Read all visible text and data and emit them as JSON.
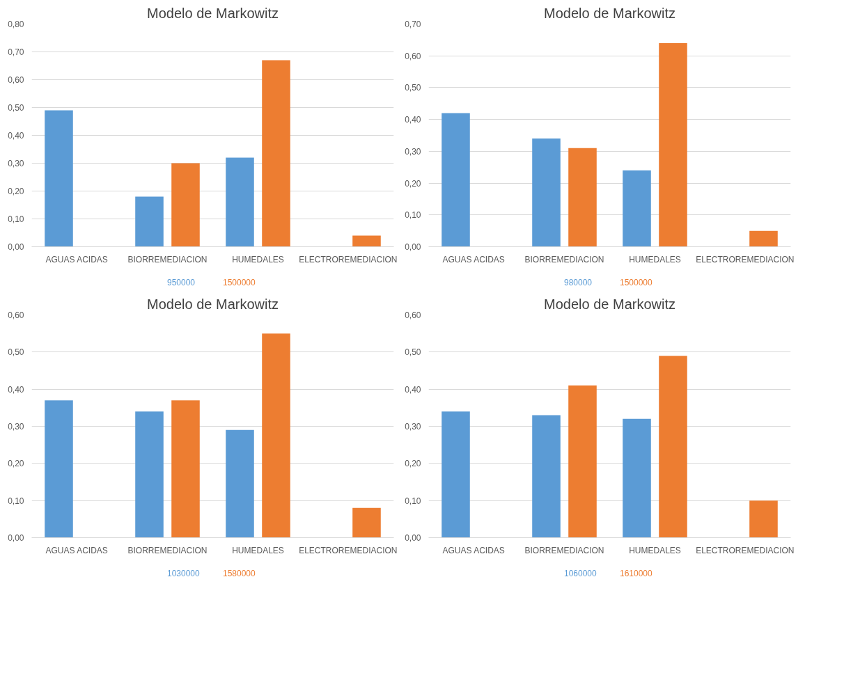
{
  "chart_data": [
    {
      "type": "bar",
      "title": "Modelo de Markowitz",
      "categories": [
        "AGUAS ACIDAS",
        "BIORREMEDIACION",
        "HUMEDALES",
        "ELECTROREMEDIACION"
      ],
      "series": [
        {
          "name": "950000",
          "color": "#5b9bd5",
          "values": [
            0.49,
            0.18,
            0.32,
            null
          ]
        },
        {
          "name": "1500000",
          "color": "#ed7d31",
          "values": [
            null,
            0.3,
            0.67,
            0.04
          ]
        }
      ],
      "ylim": [
        0,
        0.8
      ],
      "yticks": [
        {
          "value": 0,
          "label": "0,00"
        },
        {
          "value": 0.1,
          "label": "0,10"
        },
        {
          "value": 0.2,
          "label": "0,20"
        },
        {
          "value": 0.3,
          "label": "0,30"
        },
        {
          "value": 0.4,
          "label": "0,40"
        },
        {
          "value": 0.5,
          "label": "0,50"
        },
        {
          "value": 0.6,
          "label": "0,60"
        },
        {
          "value": 0.7,
          "label": "0,70"
        },
        {
          "value": 0.8,
          "label": "0,80"
        }
      ],
      "grid": "y",
      "legend": "bottom"
    },
    {
      "type": "bar",
      "title": "Modelo de Markowitz",
      "categories": [
        "AGUAS ACIDAS",
        "BIORREMEDIACION",
        "HUMEDALES",
        "ELECTROREMEDIACION"
      ],
      "series": [
        {
          "name": "980000",
          "color": "#5b9bd5",
          "values": [
            0.42,
            0.34,
            0.24,
            null
          ]
        },
        {
          "name": "1500000",
          "color": "#ed7d31",
          "values": [
            null,
            0.31,
            0.64,
            0.05
          ]
        }
      ],
      "ylim": [
        0,
        0.7
      ],
      "yticks": [
        {
          "value": 0,
          "label": "0,00"
        },
        {
          "value": 0.1,
          "label": "0,10"
        },
        {
          "value": 0.2,
          "label": "0,20"
        },
        {
          "value": 0.3,
          "label": "0,30"
        },
        {
          "value": 0.4,
          "label": "0,40"
        },
        {
          "value": 0.5,
          "label": "0,50"
        },
        {
          "value": 0.6,
          "label": "0,60"
        },
        {
          "value": 0.7,
          "label": "0,70"
        }
      ],
      "grid": "y",
      "legend": "bottom"
    },
    {
      "type": "bar",
      "title": "Modelo de Markowitz",
      "categories": [
        "AGUAS ACIDAS",
        "BIORREMEDIACION",
        "HUMEDALES",
        "ELECTROREMEDIACION"
      ],
      "series": [
        {
          "name": "1030000",
          "color": "#5b9bd5",
          "values": [
            0.37,
            0.34,
            0.29,
            null
          ]
        },
        {
          "name": "1580000",
          "color": "#ed7d31",
          "values": [
            null,
            0.37,
            0.55,
            0.08
          ]
        }
      ],
      "ylim": [
        0,
        0.6
      ],
      "yticks": [
        {
          "value": 0,
          "label": "0,00"
        },
        {
          "value": 0.1,
          "label": "0,10"
        },
        {
          "value": 0.2,
          "label": "0,20"
        },
        {
          "value": 0.3,
          "label": "0,30"
        },
        {
          "value": 0.4,
          "label": "0,40"
        },
        {
          "value": 0.5,
          "label": "0,50"
        },
        {
          "value": 0.6,
          "label": "0,60"
        }
      ],
      "grid": "y",
      "legend": "bottom"
    },
    {
      "type": "bar",
      "title": "Modelo de Markowitz",
      "categories": [
        "AGUAS ACIDAS",
        "BIORREMEDIACION",
        "HUMEDALES",
        "ELECTROREMEDIACION"
      ],
      "series": [
        {
          "name": "1060000",
          "color": "#5b9bd5",
          "values": [
            0.34,
            0.33,
            0.32,
            null
          ]
        },
        {
          "name": "1610000",
          "color": "#ed7d31",
          "values": [
            null,
            0.41,
            0.49,
            0.1
          ]
        }
      ],
      "ylim": [
        0,
        0.6
      ],
      "yticks": [
        {
          "value": 0,
          "label": "0,00"
        },
        {
          "value": 0.1,
          "label": "0,10"
        },
        {
          "value": 0.2,
          "label": "0,20"
        },
        {
          "value": 0.3,
          "label": "0,30"
        },
        {
          "value": 0.4,
          "label": "0,40"
        },
        {
          "value": 0.5,
          "label": "0,50"
        },
        {
          "value": 0.6,
          "label": "0,60"
        }
      ],
      "grid": "y",
      "legend": "bottom"
    }
  ]
}
